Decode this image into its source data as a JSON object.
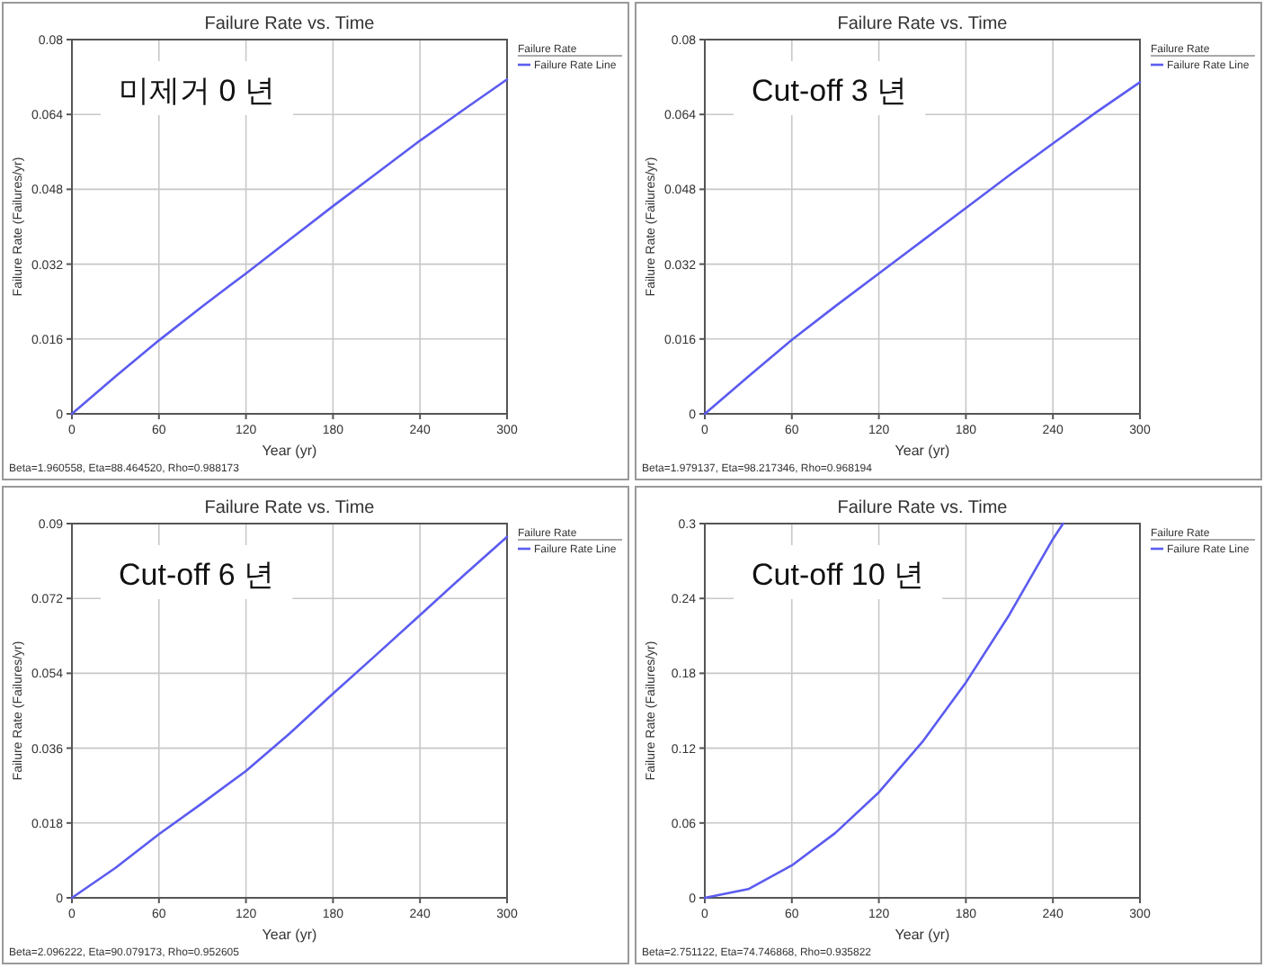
{
  "chart_data": [
    {
      "type": "line",
      "title": "Failure Rate vs. Time",
      "xlabel": "Year (yr)",
      "ylabel": "Failure Rate (Failures/yr)",
      "legend_title": "Failure Rate",
      "legend": "top right",
      "grid": true,
      "xlim": [
        0,
        300
      ],
      "ylim": [
        0,
        0.08
      ],
      "xticks": [
        0,
        60,
        120,
        180,
        240,
        300
      ],
      "yticks": [
        0,
        0.016,
        0.032,
        0.048,
        0.064,
        0.08
      ],
      "annotations": [
        "미제거 0 년",
        "Beta=1.960558, Eta=88.464520, Rho=0.988173"
      ],
      "series": [
        {
          "name": "Failure Rate Line",
          "color": "#5b5bf0",
          "x": [
            0,
            30,
            60,
            90,
            120,
            150,
            180,
            210,
            240,
            270,
            300
          ],
          "values": [
            0,
            0.008,
            0.0157,
            0.023,
            0.03,
            0.0372,
            0.0444,
            0.0514,
            0.0584,
            0.065,
            0.0715
          ]
        }
      ]
    },
    {
      "type": "line",
      "title": "Failure Rate vs. Time",
      "xlabel": "Year (yr)",
      "ylabel": "Failure Rate (Failures/yr)",
      "legend_title": "Failure Rate",
      "legend": "top right",
      "grid": true,
      "xlim": [
        0,
        300
      ],
      "ylim": [
        0,
        0.08
      ],
      "xticks": [
        0,
        60,
        120,
        180,
        240,
        300
      ],
      "yticks": [
        0,
        0.016,
        0.032,
        0.048,
        0.064,
        0.08
      ],
      "annotations": [
        "Cut-off 3 년",
        "Beta=1.979137, Eta=98.217346, Rho=0.968194"
      ],
      "series": [
        {
          "name": "Failure Rate Line",
          "color": "#5b5bf0",
          "x": [
            0,
            30,
            60,
            90,
            120,
            150,
            180,
            210,
            240,
            270,
            300
          ],
          "values": [
            0,
            0.008,
            0.0158,
            0.023,
            0.03,
            0.037,
            0.044,
            0.051,
            0.0578,
            0.0645,
            0.0709
          ]
        }
      ]
    },
    {
      "type": "line",
      "title": "Failure Rate vs. Time",
      "xlabel": "Year (yr)",
      "ylabel": "Failure Rate (Failures/yr)",
      "legend_title": "Failure Rate",
      "legend": "top right",
      "grid": true,
      "xlim": [
        0,
        300
      ],
      "ylim": [
        0,
        0.09
      ],
      "xticks": [
        0,
        60,
        120,
        180,
        240,
        300
      ],
      "yticks": [
        0,
        0.018,
        0.036,
        0.054,
        0.072,
        0.09
      ],
      "annotations": [
        "Cut-off 6 년",
        "Beta=2.096222, Eta=90.079173, Rho=0.952605"
      ],
      "series": [
        {
          "name": "Failure Rate Line",
          "color": "#5b5bf0",
          "x": [
            0,
            30,
            60,
            90,
            120,
            150,
            180,
            210,
            240,
            270,
            300
          ],
          "values": [
            0,
            0.0072,
            0.0153,
            0.0228,
            0.0305,
            0.0395,
            0.0491,
            0.0585,
            0.068,
            0.0775,
            0.0868
          ]
        }
      ]
    },
    {
      "type": "line",
      "title": "Failure Rate vs. Time",
      "xlabel": "Year (yr)",
      "ylabel": "Failure Rate (Failures/yr)",
      "legend_title": "Failure Rate",
      "legend": "top right",
      "grid": true,
      "xlim": [
        0,
        300
      ],
      "ylim": [
        0,
        0.3
      ],
      "xticks": [
        0,
        60,
        120,
        180,
        240,
        300
      ],
      "yticks": [
        0,
        0.06,
        0.12,
        0.18,
        0.24,
        0.3
      ],
      "annotations": [
        "Cut-off 10 년",
        "Beta=2.751122, Eta=74.746868, Rho=0.935822"
      ],
      "series": [
        {
          "name": "Failure Rate Line",
          "color": "#5b5bf0",
          "x": [
            0,
            30,
            60,
            90,
            120,
            150,
            180,
            210,
            240,
            247
          ],
          "values": [
            0,
            0.007,
            0.026,
            0.052,
            0.0846,
            0.125,
            0.1726,
            0.227,
            0.2876,
            0.3
          ]
        }
      ]
    }
  ]
}
